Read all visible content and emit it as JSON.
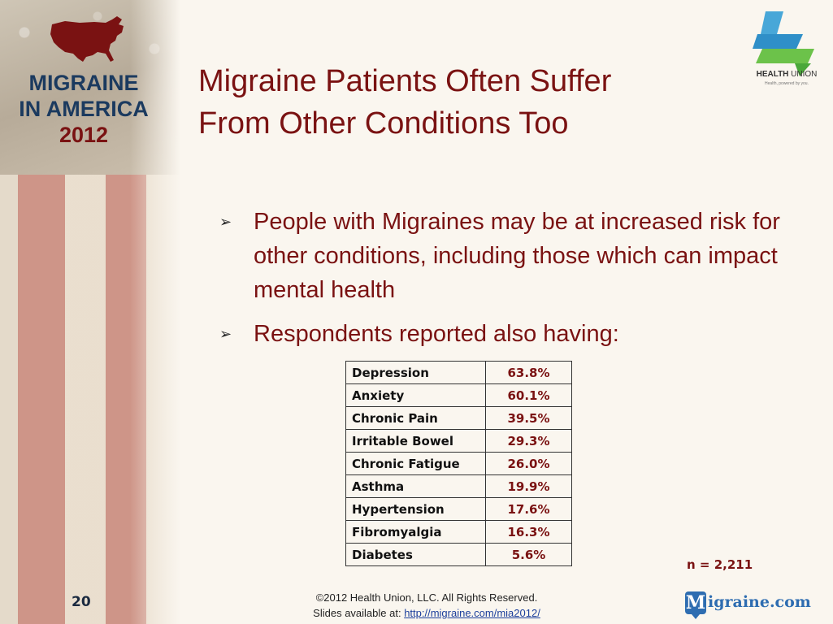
{
  "branding": {
    "mia_line1": "MIGRAINE",
    "mia_line2": "IN AMERICA",
    "mia_year": "2012",
    "hu_name_bold": "HEALTH",
    "hu_name_light": " UNION",
    "hu_tagline": "Health, powered by you.",
    "migraine_logo_m": "M",
    "migraine_logo_rest": "igraine.com"
  },
  "slide": {
    "title_line1": "Migraine Patients Often Suffer",
    "title_line2": "From Other Conditions Too",
    "bullets": [
      "People with Migraines may be at increased risk for other conditions, including those which can impact mental health",
      "Respondents reported also having:"
    ],
    "conditions": [
      {
        "name": "Depression",
        "value": "63.8%"
      },
      {
        "name": "Anxiety",
        "value": "60.1%"
      },
      {
        "name": "Chronic Pain",
        "value": "39.5%"
      },
      {
        "name": "Irritable Bowel",
        "value": "29.3%"
      },
      {
        "name": "Chronic Fatigue",
        "value": "26.0%"
      },
      {
        "name": "Asthma",
        "value": "19.9%"
      },
      {
        "name": "Hypertension",
        "value": "17.6%"
      },
      {
        "name": "Fibromyalgia",
        "value": "16.3%"
      },
      {
        "name": "Diabetes",
        "value": "5.6%"
      }
    ],
    "sample_size": "n = 2,211",
    "page_number": "20"
  },
  "footer": {
    "copyright": "©2012 Health Union, LLC.  All Rights Reserved.",
    "slides_prefix": "Slides available at: ",
    "slides_link": "http://migraine.com/mia2012/"
  },
  "colors": {
    "title": "#7a1212",
    "mia_blue": "#1b3a5f",
    "link": "#1c3f9c",
    "migraine_blue": "#2e6db1"
  }
}
